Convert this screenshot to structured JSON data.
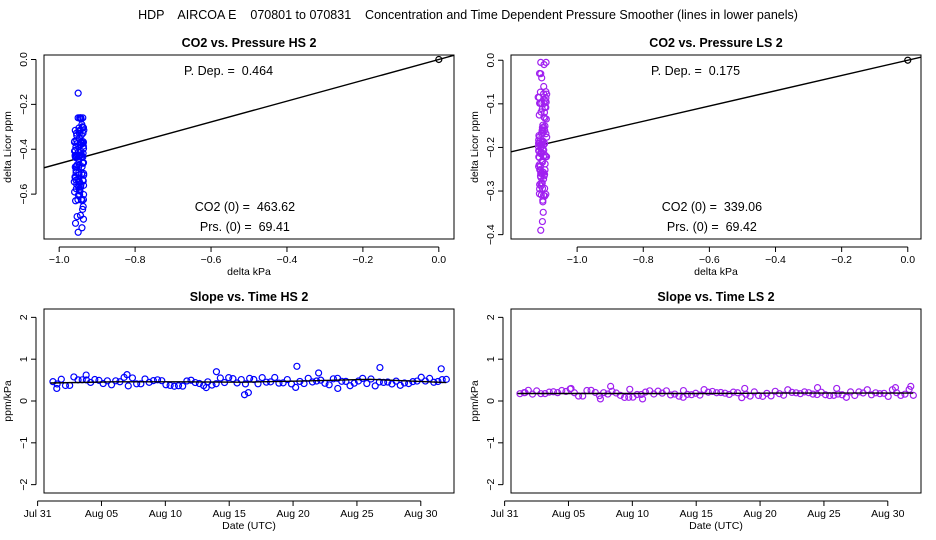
{
  "page_title": "HDP    AIRCOA E    070801 to 070831    Concentration and Time Dependent Pressure Smoother (lines in lower panels)",
  "chart_data": [
    {
      "id": "hs-pressure",
      "type": "scatter",
      "title": "CO2 vs. Pressure HS 2",
      "xlabel": "delta kPa",
      "ylabel": "delta Licor ppm",
      "xlim": [
        -1.04,
        0.04
      ],
      "ylim": [
        -0.8,
        0.02
      ],
      "xticks": [
        -1.0,
        -0.8,
        -0.6,
        -0.4,
        -0.2,
        0.0
      ],
      "xtick_labels": [
        "−1.0",
        "−0.8",
        "−0.6",
        "−0.4",
        "−0.2",
        "0.0"
      ],
      "yticks": [
        -0.6,
        -0.4,
        -0.2,
        0.0
      ],
      "ytick_labels": [
        "−0.6",
        "−0.4",
        "−0.2",
        "0.0"
      ],
      "color": "#0000ff",
      "line": {
        "slope": 0.464,
        "intercept": 0.0
      },
      "origin_point": [
        0.0,
        0.0
      ],
      "cluster": {
        "x_center": -0.948,
        "x_spread": 0.013,
        "count": 100,
        "y_min": -0.75,
        "y_max": -0.26,
        "y_mean": -0.44,
        "outliers": [
          [
            -0.95,
            -0.15
          ],
          [
            -0.95,
            -0.77
          ],
          [
            -0.957,
            -0.73
          ],
          [
            -0.94,
            -0.75
          ]
        ]
      },
      "annotations": {
        "pdep": "P. Dep. =  0.464",
        "co2_0": "CO2 (0) =  463.62",
        "prs_0": "Prs. (0) =  69.41"
      }
    },
    {
      "id": "ls-pressure",
      "type": "scatter",
      "title": "CO2 vs. Pressure LS 2",
      "xlabel": "delta kPa",
      "ylabel": "delta Licor ppm",
      "xlim": [
        -1.2,
        0.04
      ],
      "ylim": [
        -0.41,
        0.012
      ],
      "xticks": [
        -1.0,
        -0.8,
        -0.6,
        -0.4,
        -0.2,
        0.0
      ],
      "xtick_labels": [
        "−1.0",
        "−0.8",
        "−0.6",
        "−0.4",
        "−0.2",
        "0.0"
      ],
      "yticks": [
        -0.4,
        -0.3,
        -0.2,
        -0.1,
        0.0
      ],
      "ytick_labels": [
        "−0.4",
        "−0.3",
        "−0.2",
        "−0.1",
        "0.0"
      ],
      "color": "#a020f0",
      "line": {
        "slope": 0.175,
        "intercept": 0.0
      },
      "origin_point": [
        0.0,
        0.0
      ],
      "cluster": {
        "x_center": -1.105,
        "x_spread": 0.013,
        "count": 100,
        "y_min": -0.39,
        "y_max": -0.005,
        "y_mean": -0.19,
        "outliers": [
          [
            -1.11,
            -0.005
          ],
          [
            -1.1,
            -0.01
          ],
          [
            -1.11,
            -0.39
          ],
          [
            -1.105,
            -0.37
          ]
        ]
      },
      "annotations": {
        "pdep": "P. Dep. =  0.175",
        "co2_0": "CO2 (0) =  339.06",
        "prs_0": "Prs. (0) =  69.42"
      }
    },
    {
      "id": "hs-slope",
      "type": "scatter",
      "title": "Slope vs. Time HS 2",
      "xlabel": "Date (UTC)",
      "ylabel": "ppm/kPa",
      "xlim": [
        0.5,
        32.6
      ],
      "ylim": [
        -2.2,
        2.2
      ],
      "xticks": [
        0,
        5,
        10,
        15,
        20,
        25,
        30
      ],
      "xtick_labels": [
        "Jul 31",
        "Aug 05",
        "Aug 10",
        "Aug 15",
        "Aug 20",
        "Aug 25",
        "Aug 30"
      ],
      "yticks": [
        -2,
        -1,
        0,
        1,
        2
      ],
      "ytick_labels": [
        "−2",
        "−1",
        "0",
        "1",
        "2"
      ],
      "color": "#0000ff",
      "smoother": [
        [
          1.0,
          0.43
        ],
        [
          6.0,
          0.46
        ],
        [
          11.0,
          0.46
        ],
        [
          16.0,
          0.45
        ],
        [
          21.0,
          0.48
        ],
        [
          26.0,
          0.52
        ],
        [
          32.0,
          0.44
        ]
      ],
      "points": {
        "x_start": 1.2,
        "x_end": 32.0,
        "count": 95,
        "base": 0.46,
        "noise": 0.09,
        "extras": [
          [
            1.5,
            0.3
          ],
          [
            3.8,
            0.62
          ],
          [
            7.0,
            0.63
          ],
          [
            13.2,
            0.32
          ],
          [
            14.0,
            0.7
          ],
          [
            16.2,
            0.15
          ],
          [
            16.5,
            0.2
          ],
          [
            20.3,
            0.83
          ],
          [
            22.0,
            0.67
          ],
          [
            26.8,
            0.8
          ],
          [
            31.6,
            0.77
          ],
          [
            23.5,
            0.3
          ]
        ]
      }
    },
    {
      "id": "ls-slope",
      "type": "scatter",
      "title": "Slope vs. Time LS 2",
      "xlabel": "Date (UTC)",
      "ylabel": "ppm/kPa",
      "xlim": [
        0.5,
        32.6
      ],
      "ylim": [
        -2.2,
        2.2
      ],
      "xticks": [
        0,
        5,
        10,
        15,
        20,
        25,
        30
      ],
      "xtick_labels": [
        "Jul 31",
        "Aug 05",
        "Aug 10",
        "Aug 15",
        "Aug 20",
        "Aug 25",
        "Aug 30"
      ],
      "yticks": [
        -2,
        -1,
        0,
        1,
        2
      ],
      "ytick_labels": [
        "−2",
        "−1",
        "0",
        "1",
        "2"
      ],
      "color": "#a020f0",
      "smoother": [
        [
          1.0,
          0.18
        ],
        [
          6.0,
          0.18
        ],
        [
          11.0,
          0.18
        ],
        [
          16.0,
          0.18
        ],
        [
          21.0,
          0.19
        ],
        [
          26.0,
          0.19
        ],
        [
          32.0,
          0.19
        ]
      ],
      "points": {
        "x_start": 1.2,
        "x_end": 32.0,
        "count": 95,
        "base": 0.18,
        "noise": 0.07,
        "extras": [
          [
            1.6,
            0.2
          ],
          [
            5.2,
            0.3
          ],
          [
            8.3,
            0.35
          ],
          [
            9.8,
            0.28
          ],
          [
            14.0,
            0.25
          ],
          [
            18.8,
            0.3
          ],
          [
            24.5,
            0.32
          ],
          [
            26.0,
            0.3
          ],
          [
            30.6,
            0.32
          ],
          [
            31.8,
            0.35
          ],
          [
            7.5,
            0.05
          ],
          [
            10.8,
            0.05
          ]
        ]
      }
    }
  ]
}
